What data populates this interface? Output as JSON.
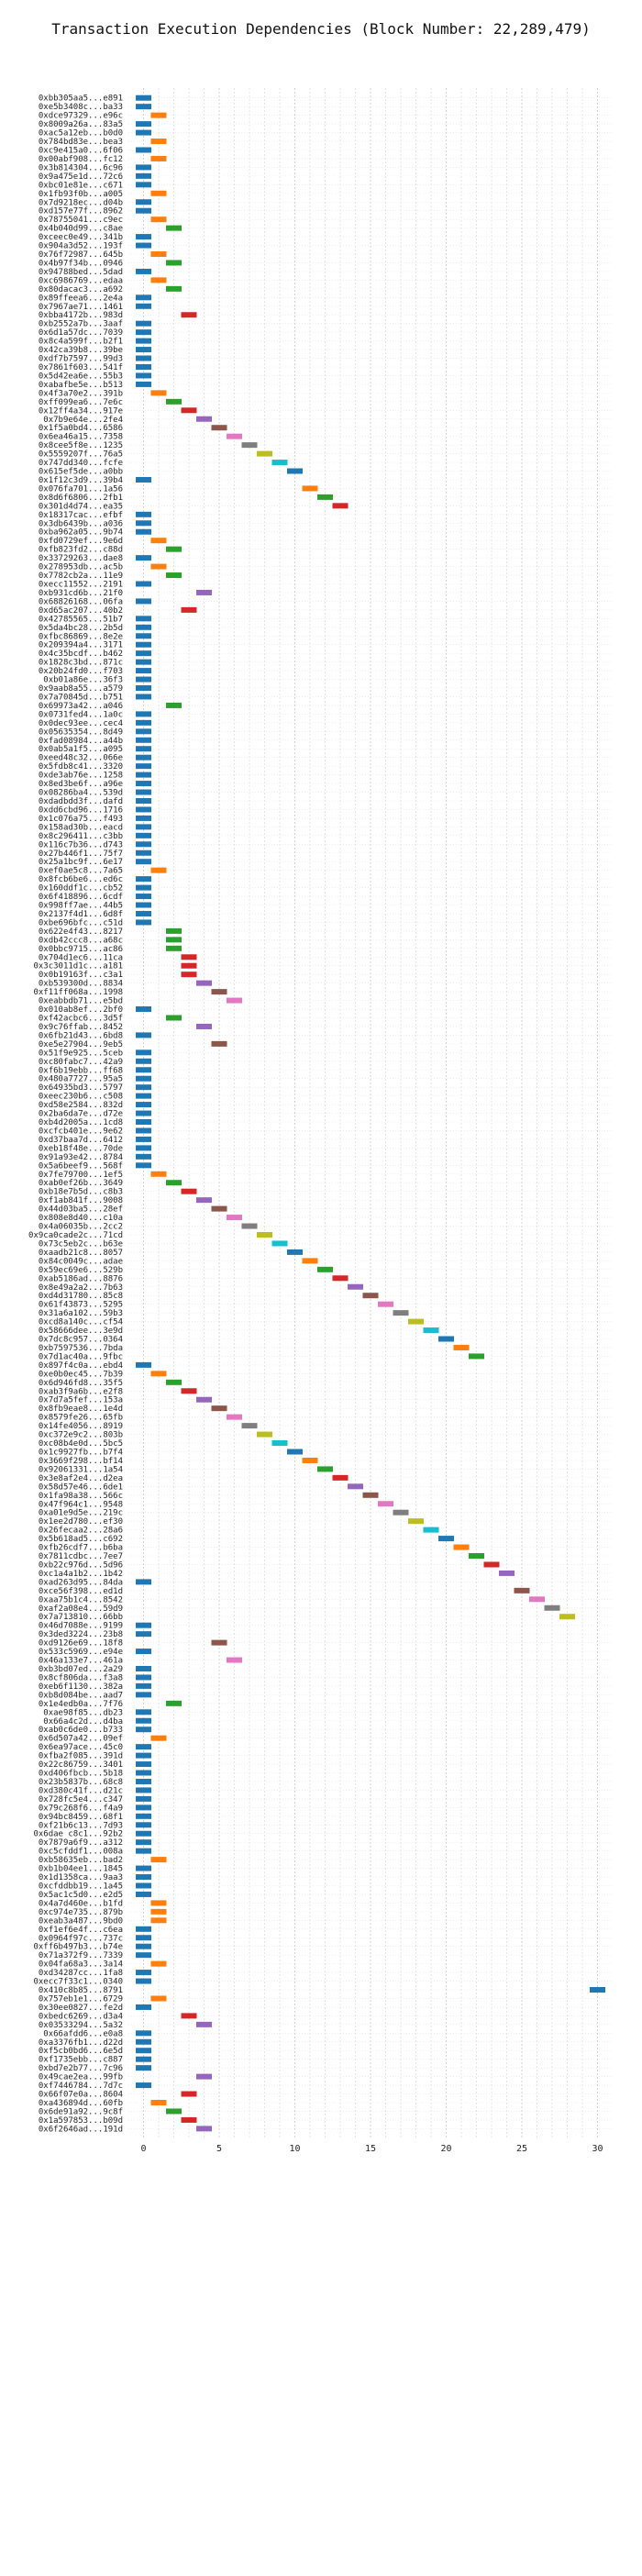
{
  "chart_data": {
    "type": "bar",
    "orientation": "horizontal",
    "title": "Transaction Execution Dependencies (Block Number: 22,289,479)",
    "xlabel": "",
    "ylabel": "",
    "xlim": [
      -1,
      31
    ],
    "xticks": [
      0,
      5,
      10,
      15,
      20,
      25,
      30
    ],
    "grid": "x-dashed",
    "palette": [
      "#1f77b4",
      "#ff7f0e",
      "#2ca02c",
      "#d62728",
      "#9467bd",
      "#8c564b",
      "#e377c2",
      "#7f7f7f",
      "#bcbd22",
      "#17becf"
    ],
    "categories": [
      "0xbb305aa5...e891",
      "0xe5b3408c...ba33",
      "0xdce97329...e96c",
      "0x8009a26a...83a5",
      "0xac5a12eb...b0d0",
      "0x784bd83e...bea3",
      "0xc9e415a0...6f06",
      "0x00abf908...fc12",
      "0x3b814304...6c96",
      "0x9a475e1d...72c6",
      "0xbc01e81e...c671",
      "0x1fb93f0b...a005",
      "0x7d9218ec...d04b",
      "0xd157e77f...8962",
      "0x78755041...c9ec",
      "0x4b040d99...c8ae",
      "0xceec0e49...341b",
      "0x904a3d52...193f",
      "0x76f72987...645b",
      "0x4b97f34b...0946",
      "0x94788bed...5dad",
      "0xc6986769...edaa",
      "0x80dacac3...a692",
      "0x89ffeea6...2e4a",
      "0x7967ae71...1461",
      "0xbba4172b...983d",
      "0xb2552a7b...3aaf",
      "0x6d1a57dc...7039",
      "0x8c4a599f...b2f1",
      "0x42ca39b8...39be",
      "0xdf7b7597...99d3",
      "0x7861f603...541f",
      "0x5d42ea6e...55b3",
      "0xabafbe5e...b513",
      "0x4f3a70e2...391b",
      "0xff099ea6...7e6c",
      "0x12ff4a34...917e",
      "0x7b9e64e...2fe4",
      "0x1f5a0bd4...6586",
      "0x6ea46a15...7358",
      "0x8cee5f8e...1235",
      "0x5559207f...76a5",
      "0x747dd340...fcfe",
      "0x615ef5de...a0bb",
      "0x1f12c3d9...39b4",
      "0x076fa701...1a56",
      "0x8d6f6806...2fb1",
      "0x301d4d74...ea35",
      "0x18317cac...efbf",
      "0x3db6439b...a036",
      "0xba962a05...9b74",
      "0xfd0729ef...9e6d",
      "0xfb823fd2...c88d",
      "0x33729263...dae8",
      "0x278953db...ac5b",
      "0x7782cb2a...11e9",
      "0xecc11552...2191",
      "0xb931cd6b...21f0",
      "0x68826168...06fa",
      "0xd65ac207...40b2",
      "0x42785565...51b7",
      "0x5da4bc28...2b5d",
      "0xfbc86869...8e2e",
      "0x209394a4...3171",
      "0x4c35bcdf...b462",
      "0x1828c3bd...871c",
      "0x20b24fd0...f703",
      "0xb01a86e...36f3",
      "0x9aab8a55...a579",
      "0x7a70845d...b751",
      "0x69973a42...a046",
      "0x0731fed4...1a0c",
      "0x0dec93ee...cec4",
      "0x05635354...8d49",
      "0xfad08984...a44b",
      "0x0ab5a1f5...a095",
      "0xeed48c32...066e",
      "0x5fdb8c41...3320",
      "0xde3ab76e...1258",
      "0x8ed3be6f...a96e",
      "0x08286ba4...539d",
      "0xdadbdd3f...dafd",
      "0xdd6cbd96...1716",
      "0x1c076a75...f493",
      "0x158ad30b...eacd",
      "0x8c296411...c3bb",
      "0x116c7b36...d743",
      "0x27b446f1...75f7",
      "0x25a1bc9f...6e17",
      "0xef0ae5c8...7a65",
      "0x8fcb6be6...ed6c",
      "0x160ddf1c...cb52",
      "0x6f418896...6cdf",
      "0x998ff7ae...44b5",
      "0x2137f4d1...6d8f",
      "0xbe696bfc...c51d",
      "0x622e4f43...8217",
      "0xdb42ccc8...a68c",
      "0x0bbc9715...ac86",
      "0x704d1ec6...11ca",
      "0x3c3011d1c...a181",
      "0x0b19163f...c3a1",
      "0xb539300d...8834",
      "0xf11ff068a...1998",
      "0xeabbdb71...e5bd",
      "0x010ab8ef...2bf0",
      "0xf42acbc6...3d5f",
      "0x9c76ffab...8452",
      "0x6fb21d43...6bd8",
      "0xe5e27904...9eb5",
      "0x51f9e925...5ceb",
      "0xc80fabc7...42a9",
      "0xf6b19ebb...ff68",
      "0x480a7727...95a5",
      "0x64935bd3...5797",
      "0xeec230b6...c508",
      "0xd58e2584...832d",
      "0x2ba6da7e...d72e",
      "0xb4d2005a...1cd8",
      "0xcfcb401e...9e62",
      "0xd37baa7d...6412",
      "0xeb18f48e...70de",
      "0x91a93e42...8784",
      "0x5a6beef9...568f",
      "0x7fe79700...1ef5",
      "0xab0ef26b...3649",
      "0xb18e7b5d...c8b3",
      "0xf1ab841f...9008",
      "0x44d03ba5...28ef",
      "0x808e8d40...c10a",
      "0x4a06035b...2cc2",
      "0x9ca0cade2c...71cd",
      "0x73c5eb2c...b63e",
      "0xaadb21c8...8057",
      "0x84c0049c...adae",
      "0x59ec69e6...529b",
      "0xab5186ad...8876",
      "0x8e49a2a2...7b63",
      "0xd4d31780...85c8",
      "0x61f43873...5295",
      "0x31a6a102...59b3",
      "0xcd8a140c...cf54",
      "0x58666dee...3e9d",
      "0x7dc8c957...0364",
      "0xb7597536...7bda",
      "0x7d1ac40a...9fbc",
      "0x897f4c0a...ebd4",
      "0xe0b0ec45...7b39",
      "0x6d946fd8...35f5",
      "0xab3f9a6b...e2f8",
      "0x7d7a5fef...153a",
      "0x8fb9eae8...1e4d",
      "0x8579fe26...65fb",
      "0x14fe4056...8919",
      "0xc372e9c2...803b",
      "0xc08b4e0d...5bc5",
      "0x1c9927fb...b7f4",
      "0x3669f298...bf14",
      "0x92061331...1a54",
      "0x3e8af2e4...d2ea",
      "0x58d57e46...6de1",
      "0x1fa98a38...566c",
      "0x47f964c1...9548",
      "0xa01e9d5e...219c",
      "0x1ee2d780...ef30",
      "0x26fecaa2...28a6",
      "0x5b618ad5...c692",
      "0xfb26cdf7...b6ba",
      "0x7811cdbc...7ee7",
      "0xb22c976d...5d96",
      "0xc1a4a1b2...1b42",
      "0xad263d95...84da",
      "0xce56f398...ed1d",
      "0xaa75b1c4...8542",
      "0xaf2a08e4...59d9",
      "0x7a713810...66bb",
      "0x46d7088e...9199",
      "0x3ded3224...23b8",
      "0xd9126e69...18f8",
      "0x533c5969...e94e",
      "0x46a133e7...461a",
      "0xb3bd07ed...2a29",
      "0x8cf806da...f3a8",
      "0xeb6f1130...382a",
      "0xb8d084be...aad7",
      "0x1e4edb0a...7f76",
      "0xae98f85...db23",
      "0x66a4c2d...d4ba",
      "0xab0c6de0...b733",
      "0x6d507a42...09ef",
      "0x6ea97ace...45c0",
      "0xfba2f085...391d",
      "0x22c86759...3401",
      "0xd406fbcb...5b18",
      "0x23b5837b...68c8",
      "0xd380c41f...d21c",
      "0x728fc5e4...c347",
      "0x79c268f6...f4a9",
      "0x94bc8459...68f1",
      "0xf21b6c13...7d93",
      "0x6dae c8c1...92b2",
      "0x7879a6f9...a312",
      "0xc5cfddf1...008a",
      "0xb58635eb...bad2",
      "0xb1b04ee1...1845",
      "0x1d1358ca...9aa3",
      "0xcfddbb19...1a45",
      "0x5ac1c5d0...e2d5",
      "0x4a7d460e...b1fd",
      "0xc974e735...879b",
      "0xeab3a487...9bd0",
      "0xf1ef6e4f...c6ea",
      "0x0964f97c...737c",
      "0xff6b497b3...b74e",
      "0x71a372f9...7339",
      "0x04fa68a3...3a14",
      "0xd34287cc...1fa8",
      "0xecc7f33c1...0340",
      "0x410c8b85...8791",
      "0x757eb1e1...6729",
      "0x30ee0827...fe2d",
      "0xbedc6269...d3a4",
      "0x03533294...5a32",
      "0x66afdd6...e0a8",
      "0xa3376fb1...d22d",
      "0xf5cb0bd6...6e5d",
      "0xf1735ebb...c887",
      "0xbd7e2b77...7c96",
      "0x49cae2ea...99fb",
      "0xf7446784...7d7c",
      "0x66f07e0a...8604",
      "0xa436894d...60fb",
      "0x6de91a92...9c8f",
      "0x1a597853...b09d",
      "0x6f2646ad...191d"
    ],
    "values": [
      0,
      0,
      1,
      0,
      0,
      1,
      0,
      1,
      0,
      0,
      0,
      1,
      0,
      0,
      1,
      2,
      0,
      0,
      1,
      2,
      0,
      1,
      2,
      0,
      0,
      3,
      0,
      0,
      0,
      0,
      0,
      0,
      0,
      0,
      1,
      2,
      3,
      4,
      5,
      6,
      7,
      8,
      9,
      10,
      0,
      11,
      12,
      13,
      0,
      0,
      0,
      1,
      2,
      0,
      1,
      2,
      0,
      4,
      0,
      3,
      0,
      0,
      0,
      0,
      0,
      0,
      0,
      0,
      0,
      0,
      2,
      0,
      0,
      0,
      0,
      0,
      0,
      0,
      0,
      0,
      0,
      0,
      0,
      0,
      0,
      0,
      0,
      0,
      0,
      1,
      0,
      0,
      0,
      0,
      0,
      0,
      2,
      2,
      2,
      3,
      3,
      3,
      4,
      5,
      6,
      0,
      2,
      4,
      0,
      5,
      0,
      0,
      0,
      0,
      0,
      0,
      0,
      0,
      0,
      0,
      0,
      0,
      0,
      0,
      1,
      2,
      3,
      4,
      5,
      6,
      7,
      8,
      9,
      10,
      11,
      12,
      13,
      14,
      15,
      16,
      17,
      18,
      19,
      20,
      21,
      22,
      0,
      1,
      2,
      3,
      4,
      5,
      6,
      7,
      8,
      9,
      10,
      11,
      12,
      13,
      14,
      15,
      16,
      17,
      18,
      19,
      20,
      21,
      22,
      23,
      24,
      0,
      25,
      26,
      27,
      28,
      0,
      0,
      5,
      0,
      6,
      0,
      0,
      0,
      0,
      2,
      0,
      0,
      0,
      1,
      0,
      0,
      0,
      0,
      0,
      0,
      0,
      0,
      0,
      0,
      0,
      0,
      0,
      1,
      0,
      0,
      0,
      0,
      1,
      1,
      1,
      0,
      0,
      0,
      0,
      1,
      0,
      0,
      30,
      1,
      0,
      3,
      4,
      0,
      0,
      0,
      0,
      0,
      4,
      0,
      3,
      1,
      2,
      3,
      4
    ]
  }
}
